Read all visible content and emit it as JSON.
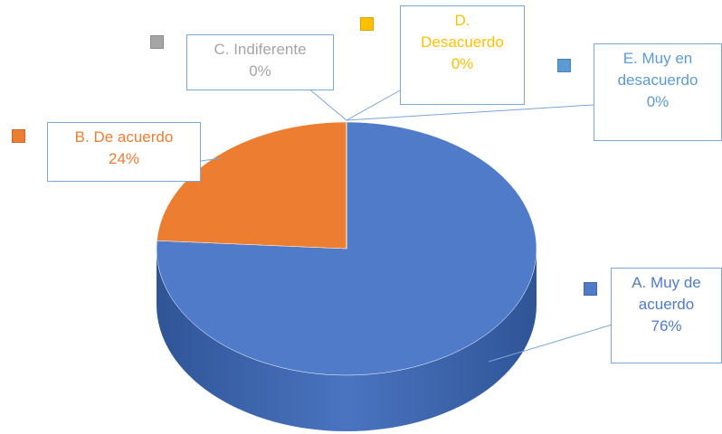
{
  "chart_data": {
    "type": "pie",
    "categories": [
      "A. Muy de acuerdo",
      "B. De acuerdo",
      "C. Indiferente",
      "D. Desacuerdo",
      "E. Muy en desacuerdo"
    ],
    "values": [
      76,
      24,
      0,
      0,
      0
    ],
    "value_labels": [
      "76%",
      "24%",
      "0%",
      "0%",
      "0%"
    ],
    "colors": [
      "#4f7bc8",
      "#ed7d31",
      "#a5a5a5",
      "#ffc000",
      "#5b9bd5"
    ],
    "three_d": true
  }
}
